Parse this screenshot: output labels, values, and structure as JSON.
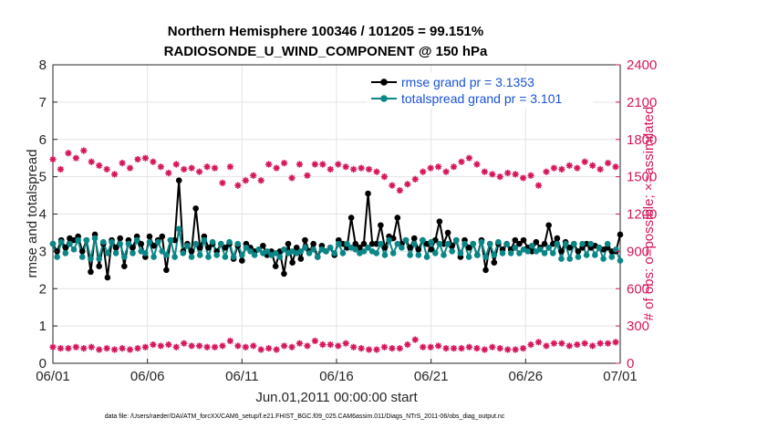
{
  "chart_data": {
    "type": "line",
    "title": "Northern Hemisphere 100346 / 101205 = 99.151%",
    "subtitle": "RADIOSONDE_U_WIND_COMPONENT @ 150 hPa",
    "xlabel": "Jun.01,2011 00:00:00 start",
    "ylabel": "rmse and totalspread",
    "ylabel_right": "# of obs: o=possible; ×=assimilated",
    "footer": "data file: /Users/raeder/DAI/ATM_forcXX/CAM6_setup/f.e21.FHIST_BGC.f09_025.CAM6assim.011/Diags_NTrS_2011-06/obs_diag_output.nc",
    "x_tick_labels": [
      "06/01",
      "06/06",
      "06/11",
      "06/16",
      "06/21",
      "06/26",
      "07/01"
    ],
    "x_tick_days": [
      0,
      5,
      10,
      15,
      20,
      25,
      30
    ],
    "xlim_days": [
      0,
      30
    ],
    "ylim": [
      0,
      8
    ],
    "y_ticks": [
      "0",
      "1",
      "2",
      "3",
      "4",
      "5",
      "6",
      "7",
      "8"
    ],
    "ylim_right": [
      0,
      2400
    ],
    "y_ticks_right": [
      "0",
      "300",
      "600",
      "900",
      "1200",
      "1500",
      "1800",
      "2100",
      "2400"
    ],
    "grid": true,
    "legend_position": "top-right",
    "colors": {
      "rmse": "#000000",
      "spread": "#0a8686",
      "obs": "#d6175c",
      "legend_text": "#1a52d6"
    },
    "series": [
      {
        "name": "rmse grand pr = 3.1353",
        "axis": "left",
        "values": [
          3.2,
          3.0,
          3.3,
          3.1,
          3.35,
          3.3,
          3.4,
          3.0,
          3.3,
          2.45,
          3.45,
          2.6,
          3.2,
          2.3,
          3.3,
          3.1,
          3.35,
          2.6,
          3.3,
          3.1,
          3.4,
          3.2,
          2.85,
          3.4,
          3.15,
          3.3,
          3.4,
          2.5,
          3.3,
          3.3,
          4.9,
          3.0,
          3.2,
          3.0,
          4.15,
          3.1,
          3.4,
          3.1,
          3.2,
          3.0,
          3.2,
          3.1,
          3.2,
          2.8,
          3.15,
          2.75,
          3.2,
          3.1,
          3.0,
          3.05,
          3.15,
          2.9,
          3.0,
          2.6,
          3.0,
          2.4,
          3.2,
          2.7,
          3.1,
          2.8,
          3.3,
          3.0,
          3.2,
          2.85,
          3.15,
          3.0,
          3.1,
          2.9,
          3.3,
          3.2,
          3.1,
          3.9,
          3.2,
          3.1,
          3.2,
          4.55,
          3.2,
          3.2,
          3.7,
          3.1,
          3.4,
          3.35,
          3.9,
          3.2,
          3.3,
          3.1,
          3.35,
          3.05,
          3.3,
          3.2,
          3.05,
          3.3,
          3.8,
          3.2,
          3.5,
          3.15,
          3.3,
          2.85,
          3.3,
          3.1,
          3.2,
          2.9,
          3.3,
          2.5,
          3.2,
          2.7,
          3.2,
          3.05,
          3.2,
          3.05,
          3.3,
          3.2,
          3.3,
          3.1,
          3.0,
          3.25,
          3.1,
          3.2,
          3.7,
          3.2,
          3.35,
          3.0,
          3.25,
          3.1,
          3.2,
          3.0,
          3.1,
          3.2,
          3.1,
          3.15,
          3.1,
          3.05,
          3.1,
          3.0,
          3.0,
          3.45
        ]
      },
      {
        "name": "totalspread grand pr = 3.101",
        "axis": "left",
        "values": [
          3.2,
          2.85,
          3.25,
          2.95,
          3.2,
          3.05,
          3.3,
          2.85,
          3.3,
          2.8,
          3.35,
          2.8,
          3.25,
          2.95,
          3.25,
          2.95,
          3.2,
          2.85,
          3.2,
          2.95,
          3.3,
          3.0,
          2.95,
          3.25,
          2.85,
          3.25,
          3.0,
          2.9,
          3.3,
          2.85,
          3.6,
          2.95,
          3.15,
          2.85,
          3.2,
          2.9,
          3.3,
          2.85,
          3.25,
          2.9,
          3.2,
          2.85,
          3.25,
          2.85,
          3.2,
          2.9,
          3.1,
          3.0,
          2.9,
          3.05,
          2.95,
          3.0,
          2.9,
          2.95,
          2.85,
          3.05,
          2.95,
          3.0,
          2.95,
          3.0,
          3.1,
          2.95,
          3.05,
          2.85,
          3.05,
          3.0,
          3.1,
          2.95,
          3.2,
          2.95,
          3.2,
          3.1,
          3.05,
          2.95,
          3.0,
          3.1,
          3.0,
          2.95,
          3.2,
          2.9,
          3.3,
          2.95,
          3.2,
          3.1,
          3.3,
          2.9,
          3.2,
          2.9,
          3.3,
          2.85,
          3.25,
          2.95,
          3.2,
          2.9,
          3.2,
          3.0,
          3.3,
          2.95,
          3.2,
          2.85,
          3.2,
          2.9,
          3.25,
          2.85,
          3.2,
          2.9,
          3.25,
          2.95,
          3.2,
          2.95,
          3.1,
          2.95,
          3.05,
          3.0,
          3.15,
          3.0,
          3.05,
          2.95,
          3.1,
          2.95,
          3.2,
          2.8,
          3.2,
          2.8,
          3.2,
          2.85,
          3.2,
          2.9,
          3.2,
          2.9,
          3.1,
          2.8,
          3.2,
          2.85,
          3.05,
          2.75
        ]
      },
      {
        "name": "obs possible",
        "axis": "right",
        "values": [
          1640,
          1560,
          1690,
          1650,
          1710,
          1620,
          1590,
          1560,
          1520,
          1610,
          1570,
          1640,
          1650,
          1620,
          1580,
          1530,
          1600,
          1560,
          1570,
          1540,
          1580,
          1570,
          1450,
          1580,
          1430,
          1470,
          1510,
          1470,
          1600,
          1570,
          1610,
          1490,
          1600,
          1510,
          1600,
          1600,
          1560,
          1600,
          1580,
          1560,
          1570,
          1560,
          1540,
          1500,
          1430,
          1390,
          1440,
          1480,
          1540,
          1570,
          1580,
          1540,
          1580,
          1620,
          1650,
          1600,
          1540,
          1520,
          1500,
          1530,
          1520,
          1490,
          1510,
          1430,
          1540,
          1570,
          1560,
          1590,
          1570,
          1620,
          1590,
          1560,
          1610,
          1580
        ],
        "marker": "asterisk"
      },
      {
        "name": "obs assimilated",
        "axis": "right",
        "values": [
          130,
          120,
          120,
          130,
          120,
          130,
          110,
          120,
          110,
          120,
          110,
          120,
          130,
          150,
          140,
          150,
          130,
          160,
          140,
          140,
          130,
          130,
          140,
          180,
          140,
          130,
          140,
          110,
          120,
          110,
          140,
          130,
          160,
          140,
          180,
          150,
          150,
          140,
          160,
          130,
          120,
          110,
          110,
          130,
          120,
          120,
          150,
          190,
          130,
          130,
          140,
          120,
          120,
          120,
          130,
          120,
          110,
          130,
          120,
          110,
          110,
          120,
          150,
          170,
          140,
          160,
          160,
          140,
          150,
          160,
          140,
          160,
          160,
          170
        ],
        "marker": "asterisk"
      }
    ]
  }
}
